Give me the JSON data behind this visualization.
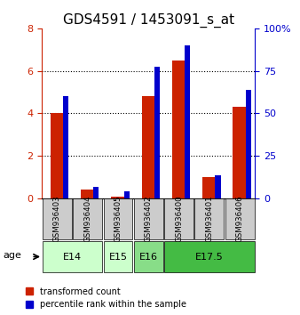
{
  "title": "GDS4591 / 1453091_s_at",
  "samples": [
    "GSM936403",
    "GSM936404",
    "GSM936405",
    "GSM936402",
    "GSM936400",
    "GSM936401",
    "GSM936406"
  ],
  "red_values": [
    4.0,
    0.4,
    0.1,
    4.8,
    6.5,
    1.0,
    4.3
  ],
  "blue_pct_values": [
    60,
    6.875,
    4.375,
    77.5,
    90,
    13.75,
    63.75
  ],
  "ylim_red": [
    0,
    8
  ],
  "yticks_red": [
    0,
    2,
    4,
    6,
    8
  ],
  "yticks_blue": [
    0,
    25,
    50,
    75,
    100
  ],
  "red_color": "#cc2200",
  "blue_color": "#0000cc",
  "sample_box_color": "#cccccc",
  "bg_color": "#ffffff",
  "legend_red_label": "transformed count",
  "legend_blue_label": "percentile rank within the sample",
  "age_label": "age",
  "title_fontsize": 11,
  "tick_fontsize": 8,
  "age_groups": [
    {
      "label": "E14",
      "cols": [
        0,
        1
      ],
      "color": "#ccffcc"
    },
    {
      "label": "E15",
      "cols": [
        2
      ],
      "color": "#ccffcc"
    },
    {
      "label": "E16",
      "cols": [
        3
      ],
      "color": "#88dd88"
    },
    {
      "label": "E17.5",
      "cols": [
        4,
        5,
        6
      ],
      "color": "#44bb44"
    }
  ]
}
